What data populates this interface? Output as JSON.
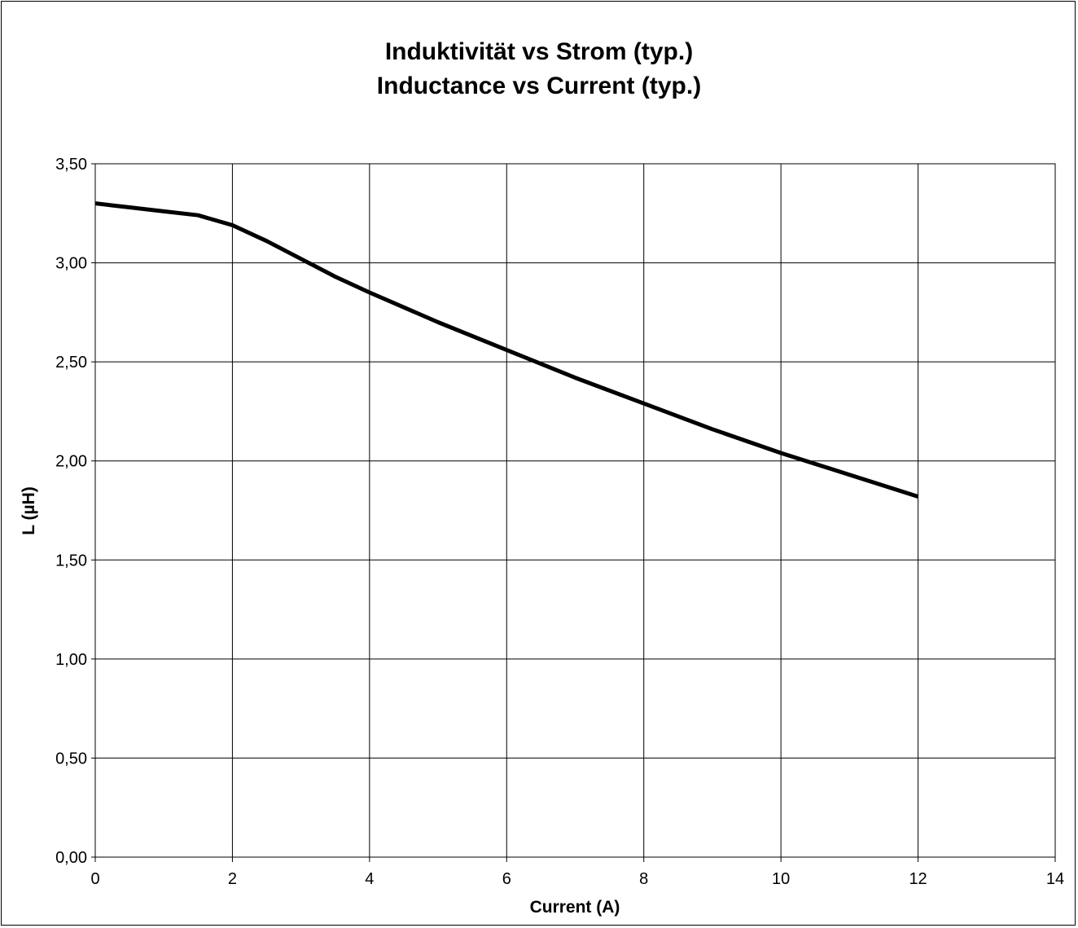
{
  "chart_data": {
    "type": "line",
    "title": "Induktivität vs Strom (typ.)",
    "subtitle": "Inductance vs Current (typ.)",
    "xlabel": "Current (A)",
    "ylabel": "L (µH)",
    "xlim": [
      0,
      14
    ],
    "ylim": [
      0,
      3.5
    ],
    "x_ticks": [
      "0",
      "2",
      "4",
      "6",
      "8",
      "10",
      "12",
      "14"
    ],
    "y_ticks": [
      "0,00",
      "0,50",
      "1,00",
      "1,50",
      "2,00",
      "2,50",
      "3,00",
      "3,50"
    ],
    "grid": true,
    "legend": "none",
    "series": [
      {
        "color": "#000000",
        "x": [
          0,
          0.25,
          0.5,
          1,
          1.5,
          2,
          2.5,
          3,
          3.5,
          4,
          5,
          6,
          7,
          8,
          9,
          10,
          11,
          12
        ],
        "y": [
          3.3,
          3.29,
          3.28,
          3.26,
          3.24,
          3.19,
          3.11,
          3.02,
          2.93,
          2.85,
          2.7,
          2.56,
          2.42,
          2.29,
          2.16,
          2.04,
          1.93,
          1.82
        ]
      }
    ]
  }
}
